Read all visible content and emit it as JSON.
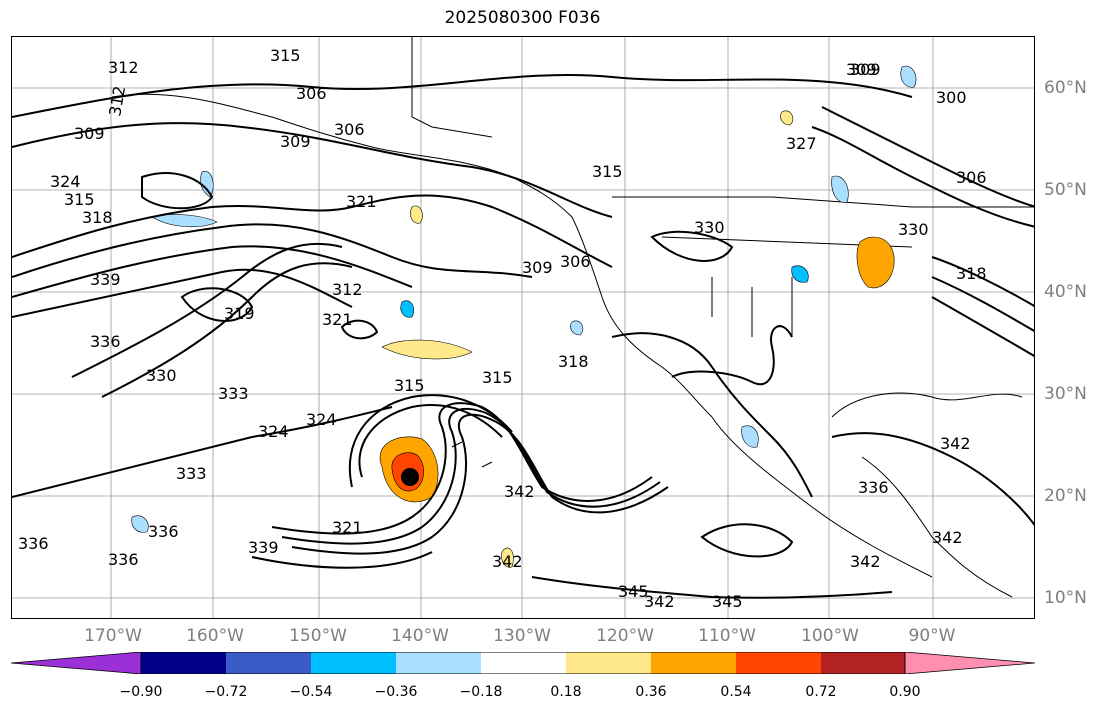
{
  "title": "2025080300 F036",
  "lat_labels": [
    "60°N",
    "50°N",
    "40°N",
    "30°N",
    "20°N",
    "10°N"
  ],
  "lon_labels": [
    "170°W",
    "160°W",
    "150°W",
    "140°W",
    "130°W",
    "120°W",
    "110°W",
    "100°W",
    "90°W"
  ],
  "contour_labels": [
    "312",
    "315",
    "306",
    "309",
    "312",
    "309",
    "306",
    "309",
    "324",
    "315",
    "318",
    "321",
    "339",
    "336",
    "312",
    "319",
    "330",
    "333",
    "324",
    "321",
    "324",
    "315",
    "315",
    "309",
    "306",
    "318",
    "330",
    "327",
    "309",
    "300",
    "306",
    "318",
    "336",
    "342",
    "321",
    "339",
    "336",
    "333",
    "336",
    "342",
    "345",
    "342",
    "345",
    "342",
    "342",
    "336",
    "342",
    "315",
    "330"
  ],
  "colorbar": {
    "ticks": [
      "−0.90",
      "−0.72",
      "−0.54",
      "−0.36",
      "−0.18",
      "0.18",
      "0.36",
      "0.54",
      "0.72",
      "0.90"
    ],
    "colors": [
      "#9b30d9",
      "#00008b",
      "#3b5bc9",
      "#00bfff",
      "#aadfff",
      "#ffffff",
      "#ffe98a",
      "#ffa500",
      "#ff4500",
      "#b22222",
      "#ff8fb0"
    ]
  },
  "storm_center": {
    "lon": -140.2,
    "lat": 21.8,
    "color": "#000000"
  }
}
